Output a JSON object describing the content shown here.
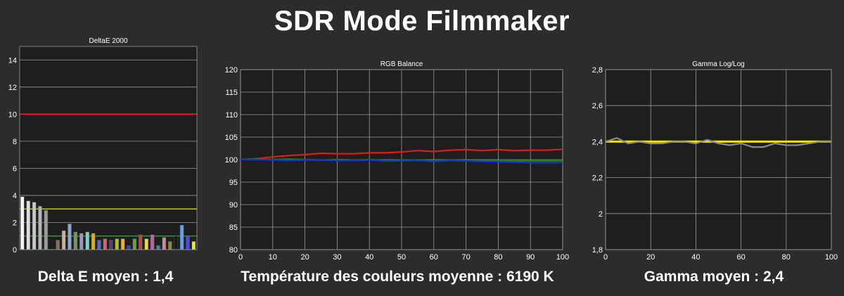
{
  "page": {
    "title": "SDR Mode Filmmaker",
    "captions": {
      "deltae": "Delta E moyen : 1,4",
      "rgb": "Température des couleurs moyenne : 6190 K",
      "gamma": "Gamma moyen : 2,4"
    }
  },
  "colors": {
    "background": "#2c2c2c",
    "plot_background": "#1e1e1e",
    "grid": "#9a9a9a",
    "red": "#e11b1b",
    "green": "#0f8a0f",
    "blue": "#1a2fd8",
    "yellow": "#f2e600",
    "gray_line": "#8c8c8c",
    "threshold_red": "#ff2020",
    "threshold_yellow": "#d8d800",
    "threshold_green": "#1fae1f"
  },
  "chart_data": [
    {
      "id": "deltae",
      "type": "bar",
      "title": "DeltaE 2000",
      "ylim": [
        0,
        15
      ],
      "yticks": [
        "0",
        "2",
        "4",
        "6",
        "8",
        "10",
        "12",
        "14"
      ],
      "ytick_values": [
        0,
        2,
        4,
        6,
        8,
        10,
        12,
        14
      ],
      "thresholds": [
        {
          "value": 10,
          "color": "#ff2020"
        },
        {
          "value": 3,
          "color": "#d8d800"
        },
        {
          "value": 1,
          "color": "#1fae1f"
        }
      ],
      "bars": [
        {
          "value": 3.9,
          "color": "#f5f5f5"
        },
        {
          "value": 3.6,
          "color": "#dcdcdc"
        },
        {
          "value": 3.5,
          "color": "#c8c8c8"
        },
        {
          "value": 3.2,
          "color": "#b4b4b4"
        },
        {
          "value": 2.9,
          "color": "#9a9a9a"
        },
        {
          "value": 0.0,
          "color": "#7a7a7a"
        },
        {
          "value": 0.7,
          "color": "#8a7060"
        },
        {
          "value": 1.4,
          "color": "#c8b49a"
        },
        {
          "value": 1.9,
          "color": "#8ea6d0"
        },
        {
          "value": 1.3,
          "color": "#7d9460"
        },
        {
          "value": 1.2,
          "color": "#9a96c8"
        },
        {
          "value": 1.3,
          "color": "#86d0c8"
        },
        {
          "value": 1.2,
          "color": "#d8b02a"
        },
        {
          "value": 0.7,
          "color": "#5a6ab8"
        },
        {
          "value": 0.8,
          "color": "#c86a78"
        },
        {
          "value": 0.7,
          "color": "#6a3a78"
        },
        {
          "value": 0.8,
          "color": "#a8c43a"
        },
        {
          "value": 0.8,
          "color": "#e8b43a"
        },
        {
          "value": 0.3,
          "color": "#3a4aa0"
        },
        {
          "value": 0.8,
          "color": "#6aa03a"
        },
        {
          "value": 1.1,
          "color": "#b04a4a"
        },
        {
          "value": 0.8,
          "color": "#e8d84a"
        },
        {
          "value": 1.1,
          "color": "#b46aa0"
        },
        {
          "value": 0.3,
          "color": "#3a8aa8"
        },
        {
          "value": 0.9,
          "color": "#c88aa8"
        },
        {
          "value": 0.6,
          "color": "#8a8a3a"
        },
        {
          "value": 1.0,
          "color": "#1a1a1a"
        },
        {
          "value": 1.8,
          "color": "#6aa0e0"
        },
        {
          "value": 1.0,
          "color": "#4a4ae0"
        },
        {
          "value": 0.6,
          "color": "#e8e83a"
        }
      ]
    },
    {
      "id": "rgb",
      "type": "line",
      "title": "RGB Balance",
      "xlim": [
        0,
        100
      ],
      "ylim": [
        80,
        120
      ],
      "xticks": [
        0,
        10,
        20,
        30,
        40,
        50,
        60,
        70,
        80,
        90,
        100
      ],
      "yticks": [
        80,
        85,
        90,
        95,
        100,
        105,
        110,
        115,
        120
      ],
      "x": [
        0,
        5,
        10,
        15,
        20,
        25,
        30,
        35,
        40,
        45,
        50,
        55,
        60,
        65,
        70,
        75,
        80,
        85,
        90,
        95,
        100
      ],
      "series": [
        {
          "color": "#e11b1b",
          "values": [
            100,
            100.2,
            100.6,
            100.9,
            101.1,
            101.4,
            101.3,
            101.3,
            101.5,
            101.5,
            101.7,
            102.0,
            101.8,
            102.1,
            102.2,
            102.0,
            102.2,
            102.0,
            102.1,
            102.1,
            102.3
          ]
        },
        {
          "color": "#0f8a0f",
          "values": [
            100,
            100.2,
            100.0,
            100.1,
            100.0,
            99.9,
            100.0,
            99.9,
            100.0,
            99.8,
            99.9,
            99.9,
            99.8,
            99.9,
            99.8,
            99.8,
            99.7,
            99.7,
            99.7,
            99.7,
            99.7
          ]
        },
        {
          "color": "#1a2fd8",
          "values": [
            100,
            100.0,
            99.9,
            99.8,
            99.9,
            99.9,
            99.8,
            99.8,
            99.9,
            99.7,
            99.7,
            99.8,
            99.6,
            99.8,
            99.7,
            99.6,
            99.5,
            99.4,
            99.3,
            99.3,
            99.3
          ]
        }
      ]
    },
    {
      "id": "gamma",
      "type": "line",
      "title": "Gamma Log/Log",
      "xlim": [
        0,
        100
      ],
      "ylim": [
        1.8,
        2.8
      ],
      "xticks": [
        0,
        20,
        40,
        60,
        80,
        100
      ],
      "yticks": [
        "1,8",
        "2",
        "2,2",
        "2,4",
        "2,6",
        "2,8"
      ],
      "ytick_values": [
        1.8,
        2.0,
        2.2,
        2.4,
        2.6,
        2.8
      ],
      "x": [
        0,
        5,
        10,
        15,
        20,
        25,
        30,
        35,
        40,
        45,
        50,
        55,
        60,
        65,
        70,
        75,
        80,
        85,
        90,
        95,
        100
      ],
      "series": [
        {
          "color": "#f2e600",
          "values": [
            2.4,
            2.4,
            2.4,
            2.4,
            2.4,
            2.4,
            2.4,
            2.4,
            2.4,
            2.4,
            2.4,
            2.4,
            2.4,
            2.4,
            2.4,
            2.4,
            2.4,
            2.4,
            2.4,
            2.4,
            2.4
          ]
        },
        {
          "color": "#8c8c8c",
          "values": [
            2.4,
            2.42,
            2.39,
            2.4,
            2.39,
            2.39,
            2.4,
            2.4,
            2.39,
            2.41,
            2.39,
            2.38,
            2.39,
            2.37,
            2.37,
            2.39,
            2.38,
            2.38,
            2.39,
            2.4,
            2.4
          ]
        }
      ]
    }
  ]
}
